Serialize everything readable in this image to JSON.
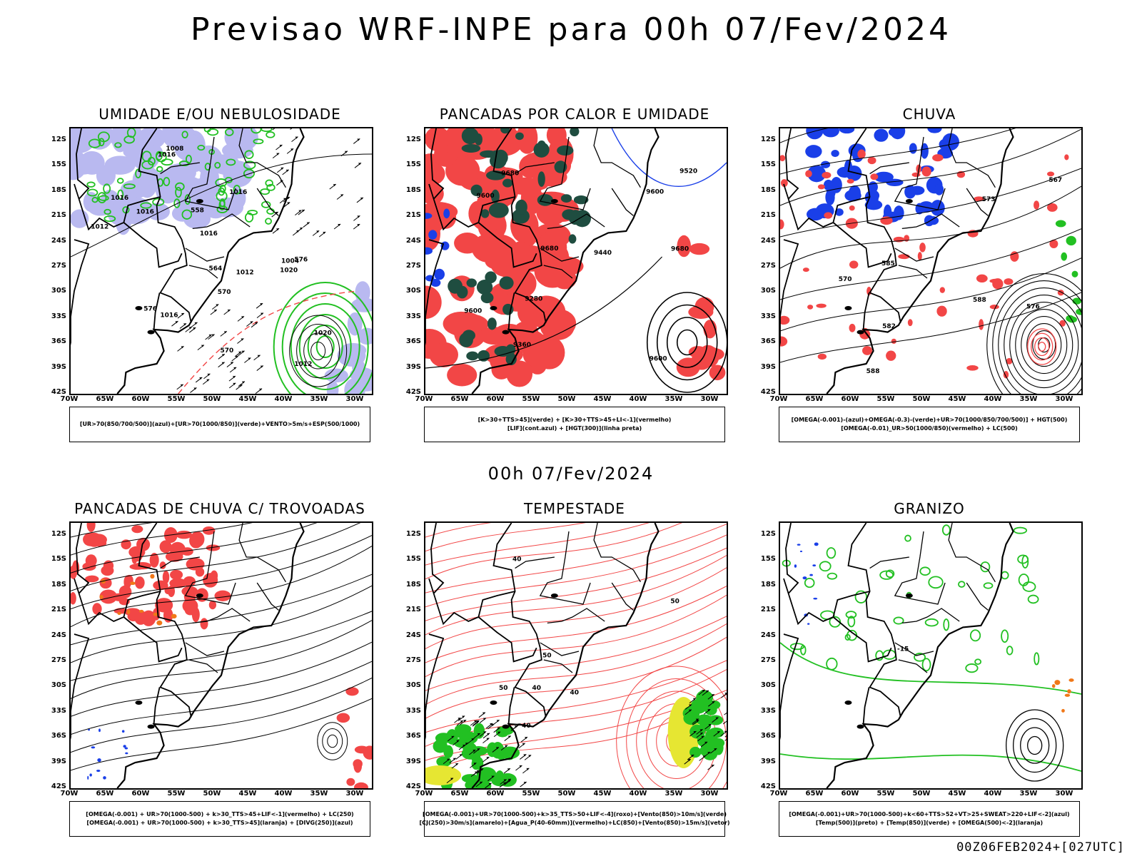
{
  "title": "Previsao WRF-INPE  para 00h 07/Fev/2024",
  "mid_time": "00h 07/Fev/2024",
  "footer_code": "00Z06FEB2024+[027UTC]",
  "lat_ticks": [
    "12S",
    "15S",
    "18S",
    "21S",
    "24S",
    "27S",
    "30S",
    "33S",
    "36S",
    "39S",
    "42S"
  ],
  "lon_ticks": [
    "70W",
    "65W",
    "60W",
    "55W",
    "50W",
    "45W",
    "40W",
    "35W",
    "30W"
  ],
  "colors": {
    "humidity_high_levels": "#b9b9f0",
    "humidity_low_levels": "#22c022",
    "convection_red": "#f24646",
    "convection_darkgreen": "#1f4d40",
    "rain_blue": "#1a3fe8",
    "contour_black": "#000000",
    "orange": "#f07818",
    "yellow": "#e6e632"
  },
  "panels": [
    {
      "id": "umidade",
      "title": "UMIDADE E/OU NEBULOSIDADE",
      "legend": [
        "[UR>70(850/700/500)](azul)+[UR>70(1000/850)](verde)+VENTO>5m/s+ESP(500/1000)"
      ],
      "contour_labels": [
        "1016",
        "1016",
        "1016",
        "1016",
        "1016",
        "1016",
        "1012",
        "1012",
        "1020",
        "1020",
        "1008",
        "1004",
        "1012",
        "576",
        "570",
        "570",
        "558",
        "564",
        "576"
      ]
    },
    {
      "id": "pancadas-calor",
      "title": "PANCADAS POR CALOR E UMIDADE",
      "legend": [
        "[K>30+TTS>45](verde) + [K>30+TTS>45+LI<-1](vermelho)",
        "[LIF](cont.azul) + [HGT(300)](linha preta)"
      ],
      "contour_labels": [
        "9680",
        "9680",
        "9680",
        "9600",
        "9600",
        "9600",
        "9440",
        "9360",
        "9280",
        "9520",
        "9600"
      ]
    },
    {
      "id": "chuva",
      "title": "CHUVA",
      "legend": [
        "[OMEGA(-0.001)-(azul)+OMEGA(-0.3)-(verde)+UR>70(1000/850/700/500)] + HGT(500)",
        "[OMEGA(-0.01)_UR>50(1000/850)(vermelho) + LC(500)"
      ],
      "contour_labels": [
        "588",
        "588",
        "585",
        "582",
        "576",
        "573",
        "570",
        "567"
      ]
    },
    {
      "id": "trovoadas",
      "title": "PANCADAS DE CHUVA C/ TROVOADAS",
      "legend": [
        "[OMEGA(-0.001) + UR>70(1000-500) + k>30_TTS>45+LIF<-1](vermelho) + LC(250)",
        "[OMEGA(-0.001) + UR>70(1000-500) + k>30_TTS>45](laranja) + [DIVG(250)](azul)"
      ],
      "contour_labels": []
    },
    {
      "id": "tempestade",
      "title": "TEMPESTADE",
      "legend": [
        "[OMEGA(-0.001)+UR>70(1000-500)+k>35_TTS>50+LIF<-4](roxo)+[Vento(850)>10m/s](verde)",
        "[CJ(250)>30m/s](amarelo)+[Agua_P(40-60mm)](vermelho)+LC(850)+[Vento(850)>15m/s](vetor)"
      ],
      "contour_labels": [
        "40",
        "40",
        "50",
        "50",
        "40",
        "50",
        "40"
      ]
    },
    {
      "id": "granizo",
      "title": "GRANIZO",
      "legend": [
        "[OMEGA(-0.001)+UR>70(1000-500)+k<60+TTS>52+VT>25+SWEAT>220+LIF<-2](azul)",
        "[Temp(500)](preto) + [Temp(850)](verde) + [OMEGA(500)<-2](laranja)"
      ],
      "contour_labels": [
        "-15"
      ]
    }
  ]
}
